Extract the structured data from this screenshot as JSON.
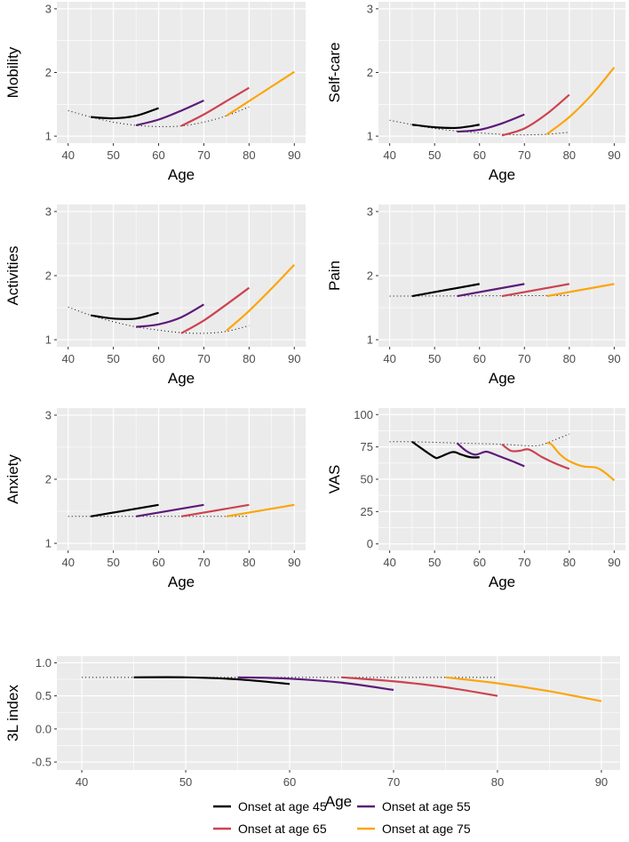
{
  "chart_data": {
    "type": "line",
    "legend": {
      "placement": "bottom",
      "entries": [
        {
          "name": "Onset at age 45",
          "color": "#000000"
        },
        {
          "name": "Onset at age 55",
          "color": "#5d1a79"
        },
        {
          "name": "Onset at age 65",
          "color": "#cc4350"
        },
        {
          "name": "Onset at age 75",
          "color": "#fca50a"
        }
      ]
    },
    "panels": [
      {
        "ylabel": "Mobility",
        "xlabel": "Age",
        "xlim": [
          37.5,
          92.5
        ],
        "ylim": [
          0.89,
          3.11
        ],
        "xticks": [
          "40",
          "50",
          "60",
          "70",
          "80",
          "90"
        ],
        "yticks": [
          "1",
          "2",
          "3"
        ],
        "reference": [
          [
            40,
            1.4
          ],
          [
            45,
            1.3
          ],
          [
            50,
            1.22
          ],
          [
            55,
            1.17
          ],
          [
            60,
            1.15
          ],
          [
            65,
            1.16
          ],
          [
            70,
            1.22
          ],
          [
            75,
            1.32
          ],
          [
            80,
            1.46
          ]
        ],
        "series": [
          [
            [
              45,
              1.3
            ],
            [
              50,
              1.28
            ],
            [
              55,
              1.32
            ],
            [
              60,
              1.44
            ]
          ],
          [
            [
              55,
              1.17
            ],
            [
              60,
              1.26
            ],
            [
              65,
              1.4
            ],
            [
              70,
              1.56
            ]
          ],
          [
            [
              65,
              1.16
            ],
            [
              70,
              1.34
            ],
            [
              75,
              1.55
            ],
            [
              80,
              1.76
            ]
          ],
          [
            [
              75,
              1.32
            ],
            [
              80,
              1.55
            ],
            [
              85,
              1.78
            ],
            [
              90,
              2.01
            ]
          ]
        ]
      },
      {
        "ylabel": "Self-care",
        "xlabel": "Age",
        "xlim": [
          37.5,
          92.5
        ],
        "ylim": [
          0.89,
          3.11
        ],
        "xticks": [
          "40",
          "50",
          "60",
          "70",
          "80",
          "90"
        ],
        "yticks": [
          "1",
          "2",
          "3"
        ],
        "reference": [
          [
            40,
            1.25
          ],
          [
            45,
            1.18
          ],
          [
            50,
            1.12
          ],
          [
            55,
            1.08
          ],
          [
            60,
            1.05
          ],
          [
            65,
            1.03
          ],
          [
            70,
            1.02
          ],
          [
            75,
            1.03
          ],
          [
            80,
            1.06
          ]
        ],
        "series": [
          [
            [
              45,
              1.18
            ],
            [
              50,
              1.14
            ],
            [
              55,
              1.13
            ],
            [
              60,
              1.18
            ]
          ],
          [
            [
              55,
              1.07
            ],
            [
              60,
              1.1
            ],
            [
              65,
              1.2
            ],
            [
              70,
              1.34
            ]
          ],
          [
            [
              65,
              1.01
            ],
            [
              70,
              1.12
            ],
            [
              75,
              1.35
            ],
            [
              80,
              1.65
            ]
          ],
          [
            [
              75,
              1.03
            ],
            [
              80,
              1.3
            ],
            [
              85,
              1.65
            ],
            [
              90,
              2.08
            ]
          ]
        ]
      },
      {
        "ylabel": "Activities",
        "xlabel": "Age",
        "xlim": [
          37.5,
          92.5
        ],
        "ylim": [
          0.89,
          3.11
        ],
        "xticks": [
          "40",
          "50",
          "60",
          "70",
          "80",
          "90"
        ],
        "yticks": [
          "1",
          "2",
          "3"
        ],
        "reference": [
          [
            40,
            1.51
          ],
          [
            45,
            1.38
          ],
          [
            50,
            1.28
          ],
          [
            55,
            1.2
          ],
          [
            60,
            1.15
          ],
          [
            65,
            1.11
          ],
          [
            70,
            1.1
          ],
          [
            75,
            1.13
          ],
          [
            80,
            1.22
          ]
        ],
        "series": [
          [
            [
              45,
              1.38
            ],
            [
              50,
              1.33
            ],
            [
              55,
              1.33
            ],
            [
              60,
              1.42
            ]
          ],
          [
            [
              55,
              1.2
            ],
            [
              60,
              1.24
            ],
            [
              65,
              1.35
            ],
            [
              70,
              1.55
            ]
          ],
          [
            [
              65,
              1.1
            ],
            [
              70,
              1.3
            ],
            [
              75,
              1.55
            ],
            [
              80,
              1.81
            ]
          ],
          [
            [
              75,
              1.14
            ],
            [
              80,
              1.45
            ],
            [
              85,
              1.8
            ],
            [
              90,
              2.17
            ]
          ]
        ]
      },
      {
        "ylabel": "Pain",
        "xlabel": "Age",
        "xlim": [
          37.5,
          92.5
        ],
        "ylim": [
          0.89,
          3.11
        ],
        "xticks": [
          "40",
          "50",
          "60",
          "70",
          "80",
          "90"
        ],
        "yticks": [
          "1",
          "2",
          "3"
        ],
        "reference": [
          [
            40,
            1.68
          ],
          [
            80,
            1.69
          ]
        ],
        "series": [
          [
            [
              45,
              1.68
            ],
            [
              60,
              1.87
            ]
          ],
          [
            [
              55,
              1.68
            ],
            [
              70,
              1.87
            ]
          ],
          [
            [
              65,
              1.68
            ],
            [
              80,
              1.87
            ]
          ],
          [
            [
              75,
              1.68
            ],
            [
              90,
              1.87
            ]
          ]
        ]
      },
      {
        "ylabel": "Anxiety",
        "xlabel": "Age",
        "xlim": [
          37.5,
          92.5
        ],
        "ylim": [
          0.89,
          3.11
        ],
        "xticks": [
          "40",
          "50",
          "60",
          "70",
          "80",
          "90"
        ],
        "yticks": [
          "1",
          "2",
          "3"
        ],
        "reference": [
          [
            40,
            1.42
          ],
          [
            80,
            1.42
          ]
        ],
        "series": [
          [
            [
              45,
              1.42
            ],
            [
              60,
              1.6
            ]
          ],
          [
            [
              55,
              1.42
            ],
            [
              70,
              1.6
            ]
          ],
          [
            [
              65,
              1.42
            ],
            [
              80,
              1.6
            ]
          ],
          [
            [
              75,
              1.42
            ],
            [
              90,
              1.6
            ]
          ]
        ]
      },
      {
        "ylabel": "VAS",
        "xlabel": "Age",
        "xlim": [
          37.5,
          92.5
        ],
        "ylim": [
          -5,
          105
        ],
        "xticks": [
          "40",
          "50",
          "60",
          "70",
          "80",
          "90"
        ],
        "yticks": [
          "0",
          "25",
          "50",
          "75",
          "100"
        ],
        "reference": [
          [
            40,
            79
          ],
          [
            45,
            79
          ],
          [
            55,
            78
          ],
          [
            65,
            77
          ],
          [
            70,
            76
          ],
          [
            73,
            76
          ],
          [
            75,
            78
          ],
          [
            80,
            85
          ]
        ],
        "series": [
          [
            [
              45,
              79
            ],
            [
              47,
              74
            ],
            [
              50,
              67
            ],
            [
              51,
              67
            ],
            [
              54,
              71
            ],
            [
              56,
              69
            ],
            [
              58,
              67
            ],
            [
              60,
              67
            ]
          ],
          [
            [
              55,
              78
            ],
            [
              57,
              72
            ],
            [
              59,
              69
            ],
            [
              61,
              71
            ],
            [
              62,
              71
            ],
            [
              65,
              67
            ],
            [
              68,
              63
            ],
            [
              70,
              60
            ]
          ],
          [
            [
              65,
              77
            ],
            [
              67,
              72
            ],
            [
              69,
              72
            ],
            [
              71,
              73
            ],
            [
              74,
              67
            ],
            [
              77,
              62
            ],
            [
              80,
              58
            ]
          ],
          [
            [
              75,
              78
            ],
            [
              76,
              77
            ],
            [
              78,
              69
            ],
            [
              80,
              64
            ],
            [
              83,
              60
            ],
            [
              86,
              59
            ],
            [
              88,
              55
            ],
            [
              90,
              49
            ]
          ]
        ]
      },
      {
        "ylabel": "3L index",
        "xlabel": "Age",
        "xlim": [
          37.6,
          91.8
        ],
        "ylim": [
          -0.62,
          1.1
        ],
        "xticks": [
          "40",
          "50",
          "60",
          "70",
          "80",
          "90"
        ],
        "yticks": [
          "-0.5",
          "0.0",
          "0.5",
          "1.0"
        ],
        "reference": [
          [
            40,
            0.78
          ],
          [
            80,
            0.78
          ]
        ],
        "series": [
          [
            [
              45,
              0.78
            ],
            [
              50,
              0.78
            ],
            [
              55,
              0.75
            ],
            [
              60,
              0.68
            ]
          ],
          [
            [
              55,
              0.78
            ],
            [
              60,
              0.76
            ],
            [
              65,
              0.7
            ],
            [
              70,
              0.59
            ]
          ],
          [
            [
              65,
              0.78
            ],
            [
              70,
              0.72
            ],
            [
              75,
              0.63
            ],
            [
              80,
              0.5
            ]
          ],
          [
            [
              75,
              0.78
            ],
            [
              80,
              0.69
            ],
            [
              85,
              0.57
            ],
            [
              90,
              0.42
            ]
          ]
        ]
      }
    ]
  }
}
